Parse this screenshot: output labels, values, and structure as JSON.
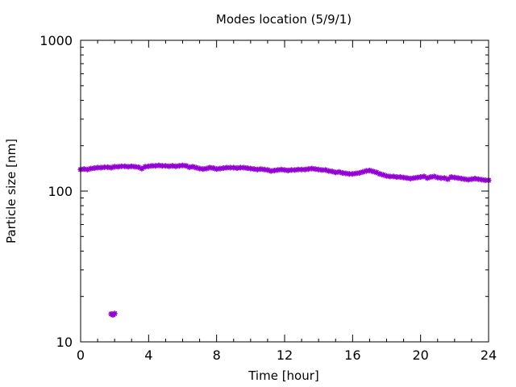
{
  "chart_data": {
    "type": "scatter",
    "title": "Modes location (5/9/1)",
    "xlabel": "Time [hour]",
    "ylabel": "Particle size [nm]",
    "xlim": [
      0,
      24
    ],
    "ylim": [
      10,
      1000
    ],
    "yscale": "log",
    "grid": false,
    "legend": "none",
    "xticks": [
      0,
      4,
      8,
      12,
      16,
      20,
      24
    ],
    "xtick_labels": [
      "0",
      "4",
      "8",
      "12",
      "16",
      "20",
      "24"
    ],
    "yticks": [
      10,
      100,
      1000
    ],
    "ytick_labels": [
      "10",
      "100",
      "1000"
    ],
    "marker_color": "#9400d3",
    "series": [
      {
        "x": [
          0.0,
          0.2,
          0.4,
          0.6,
          0.8,
          1.0,
          1.2,
          1.4,
          1.6,
          1.8,
          2.0,
          2.2,
          2.4,
          2.6,
          2.8,
          3.0,
          3.2,
          3.4,
          3.6,
          3.8,
          4.0,
          4.2,
          4.4,
          4.6,
          4.8,
          5.0,
          5.2,
          5.4,
          5.6,
          5.8,
          6.0,
          6.2,
          6.4,
          6.6,
          6.8,
          7.0,
          7.2,
          7.4,
          7.6,
          7.8,
          8.0,
          8.2,
          8.4,
          8.6,
          8.8,
          9.0,
          9.2,
          9.4,
          9.6,
          9.8,
          10.0,
          10.2,
          10.4,
          10.6,
          10.8,
          11.0,
          11.2,
          11.4,
          11.6,
          11.8,
          12.0,
          12.2,
          12.4,
          12.6,
          12.8,
          13.0,
          13.2,
          13.4,
          13.6,
          13.8,
          14.0,
          14.2,
          14.4,
          14.6,
          14.8,
          15.0,
          15.2,
          15.4,
          15.6,
          15.8,
          16.0,
          16.2,
          16.4,
          16.6,
          16.8,
          17.0,
          17.2,
          17.4,
          17.6,
          17.8,
          18.0,
          18.2,
          18.4,
          18.6,
          18.8,
          19.0,
          19.2,
          19.4,
          19.6,
          19.8,
          20.0,
          20.2,
          20.4,
          20.6,
          20.8,
          21.0,
          21.2,
          21.4,
          21.6,
          21.8,
          22.0,
          22.2,
          22.4,
          22.6,
          22.8,
          23.0,
          23.2,
          23.4,
          23.6,
          23.8,
          24.0,
          1.8,
          1.9,
          2.0
        ],
        "y": [
          139,
          140,
          139,
          141,
          142,
          143,
          143,
          144,
          144,
          143,
          145,
          145,
          146,
          146,
          145,
          146,
          145,
          144,
          141,
          145,
          146,
          147,
          147,
          148,
          147,
          147,
          146,
          147,
          146,
          147,
          148,
          147,
          144,
          145,
          143,
          141,
          140,
          141,
          143,
          142,
          140,
          141,
          142,
          143,
          143,
          143,
          142,
          143,
          143,
          142,
          141,
          140,
          139,
          140,
          139,
          138,
          136,
          137,
          138,
          139,
          138,
          137,
          138,
          138,
          139,
          139,
          139,
          140,
          141,
          140,
          139,
          138,
          138,
          136,
          135,
          133,
          134,
          132,
          131,
          130,
          130,
          131,
          132,
          134,
          136,
          137,
          135,
          133,
          130,
          128,
          126,
          125,
          125,
          124,
          124,
          123,
          122,
          121,
          122,
          123,
          124,
          125,
          122,
          124,
          125,
          123,
          122,
          122,
          120,
          124,
          123,
          122,
          121,
          120,
          119,
          120,
          121,
          120,
          119,
          118,
          118,
          15.3,
          15.1,
          15.4
        ]
      }
    ]
  }
}
